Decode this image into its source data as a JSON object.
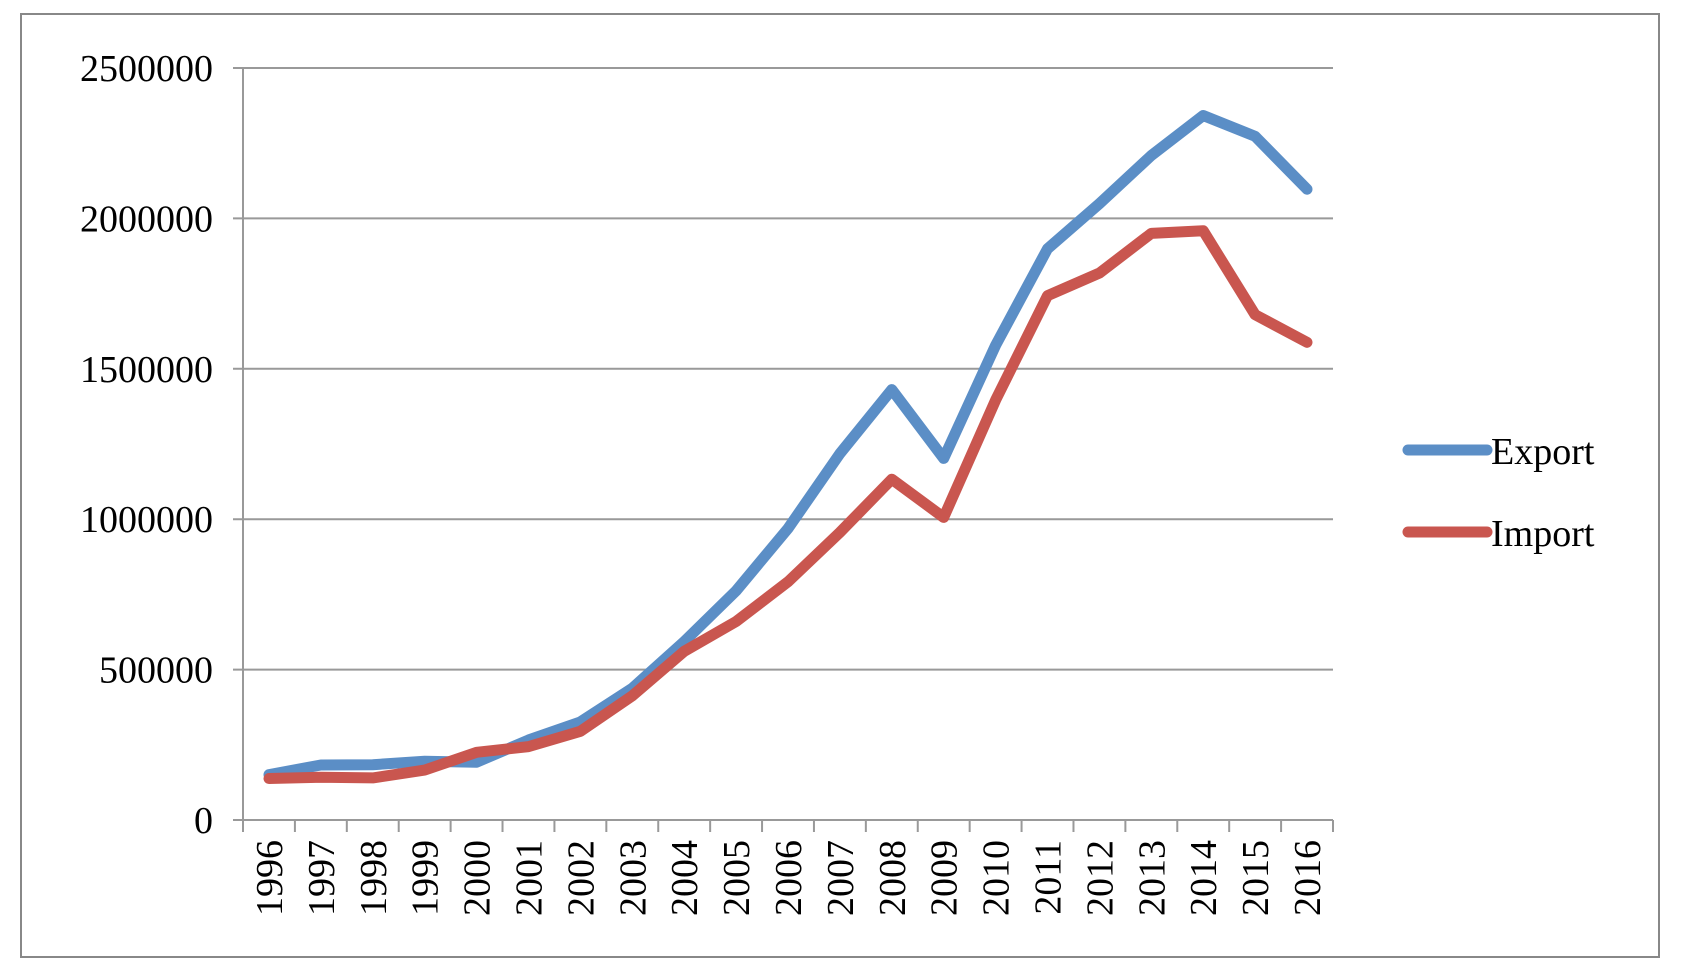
{
  "chart_data": {
    "type": "line",
    "categories": [
      "1996",
      "1997",
      "1998",
      "1999",
      "2000",
      "2001",
      "2002",
      "2003",
      "2004",
      "2005",
      "2006",
      "2007",
      "2008",
      "2009",
      "2010",
      "2011",
      "2012",
      "2013",
      "2014",
      "2015",
      "2016"
    ],
    "series": [
      {
        "name": "Export",
        "color": "#5b8ec6",
        "values": [
          151000,
          183000,
          184000,
          195000,
          192000,
          266000,
          326000,
          438000,
          593000,
          762000,
          969000,
          1218000,
          1431000,
          1202000,
          1578000,
          1899000,
          2049000,
          2209000,
          2342000,
          2273000,
          2097000
        ]
      },
      {
        "name": "Import",
        "color": "#c9564f",
        "values": [
          138000,
          142000,
          140000,
          166000,
          225000,
          244000,
          295000,
          413000,
          561000,
          660000,
          792000,
          956000,
          1133000,
          1006000,
          1396000,
          1743000,
          1818000,
          1950000,
          1959000,
          1680000,
          1588000
        ]
      }
    ],
    "y_ticks": [
      "0",
      "500000",
      "1000000",
      "1500000",
      "2000000",
      "2500000"
    ],
    "ylim": [
      0,
      2500000
    ],
    "title": "",
    "xlabel": "",
    "ylabel": "",
    "grid": true,
    "legend_position": "right"
  }
}
